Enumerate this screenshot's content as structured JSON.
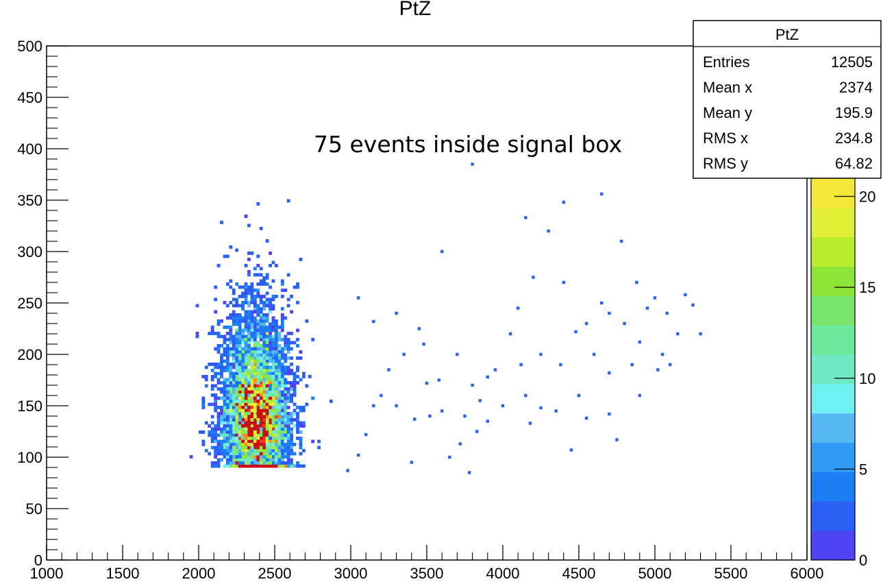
{
  "chart_data": {
    "type": "heatmap",
    "title": "PtZ",
    "xlabel": "",
    "ylabel": "",
    "xlim": [
      1000,
      6000
    ],
    "ylim": [
      0,
      500
    ],
    "x_ticks": [
      "1000",
      "1500",
      "2000",
      "2500",
      "3000",
      "3500",
      "4000",
      "4500",
      "5000",
      "5500",
      "6000"
    ],
    "y_ticks": [
      "0",
      "50",
      "100",
      "150",
      "200",
      "250",
      "300",
      "350",
      "400",
      "450",
      "500"
    ],
    "z_ticks": [
      "0",
      "5",
      "10",
      "15",
      "20"
    ],
    "zlim": [
      0,
      21
    ],
    "annotation": "75 events inside signal box",
    "stats": {
      "title": "PtZ",
      "rows": [
        {
          "label": "Entries",
          "value": "12505"
        },
        {
          "label": "Mean x",
          "value": "2374"
        },
        {
          "label": "Mean y",
          "value": "195.9"
        },
        {
          "label": "RMS x",
          "value": "234.8"
        },
        {
          "label": "RMS y",
          "value": "64.82"
        }
      ]
    },
    "distribution": {
      "mean_x": 2374,
      "mean_y": 195.9,
      "rms_x": 234.8,
      "rms_y": 64.82,
      "entries": 12505
    },
    "sparse_points": [
      [
        2980,
        87
      ],
      [
        3050,
        102
      ],
      [
        3100,
        122
      ],
      [
        3150,
        150
      ],
      [
        3200,
        160
      ],
      [
        3250,
        185
      ],
      [
        3300,
        150
      ],
      [
        3400,
        95
      ],
      [
        3420,
        137
      ],
      [
        3450,
        225
      ],
      [
        3500,
        172
      ],
      [
        3520,
        140
      ],
      [
        3580,
        175
      ],
      [
        3650,
        100
      ],
      [
        3700,
        200
      ],
      [
        3720,
        113
      ],
      [
        3750,
        140
      ],
      [
        3780,
        85
      ],
      [
        3800,
        170
      ],
      [
        3830,
        125
      ],
      [
        3850,
        155
      ],
      [
        3900,
        135
      ],
      [
        3950,
        185
      ],
      [
        4000,
        150
      ],
      [
        4050,
        220
      ],
      [
        4100,
        245
      ],
      [
        4120,
        190
      ],
      [
        4150,
        160
      ],
      [
        4180,
        133
      ],
      [
        4200,
        275
      ],
      [
        4250,
        148
      ],
      [
        4300,
        320
      ],
      [
        4350,
        145
      ],
      [
        4380,
        190
      ],
      [
        4400,
        270
      ],
      [
        4450,
        107
      ],
      [
        4480,
        222
      ],
      [
        4500,
        160
      ],
      [
        4550,
        138
      ],
      [
        4600,
        200
      ],
      [
        4650,
        250
      ],
      [
        4700,
        182
      ],
      [
        4750,
        117
      ],
      [
        4800,
        230
      ],
      [
        4850,
        190
      ],
      [
        4880,
        270
      ],
      [
        4900,
        160
      ],
      [
        4950,
        245
      ],
      [
        5000,
        255
      ],
      [
        5050,
        200
      ],
      [
        5080,
        240
      ],
      [
        5100,
        190
      ],
      [
        5150,
        220
      ],
      [
        5200,
        258
      ],
      [
        5250,
        248
      ],
      [
        5300,
        220
      ],
      [
        3050,
        255
      ],
      [
        3150,
        232
      ],
      [
        3300,
        240
      ],
      [
        3600,
        300
      ],
      [
        3800,
        385
      ],
      [
        4150,
        333
      ],
      [
        4400,
        348
      ],
      [
        4650,
        356
      ],
      [
        4780,
        310
      ],
      [
        4550,
        230
      ],
      [
        4700,
        240
      ],
      [
        3350,
        200
      ],
      [
        3480,
        210
      ],
      [
        3600,
        145
      ],
      [
        3900,
        178
      ],
      [
        4250,
        200
      ],
      [
        4700,
        142
      ],
      [
        4900,
        212
      ],
      [
        5020,
        185
      ]
    ],
    "colors": {
      "scale": [
        "#4d43f1",
        "#2b60f5",
        "#1b7ef5",
        "#2f9bf5",
        "#55b8f0",
        "#70f0f0",
        "#6fe8c4",
        "#6ee89a",
        "#7ae46c",
        "#8ee538",
        "#b8ec2c",
        "#e0ef35",
        "#f5e83a"
      ],
      "hot": [
        "#ff8a20",
        "#ee3a22",
        "#c8101a"
      ]
    }
  }
}
